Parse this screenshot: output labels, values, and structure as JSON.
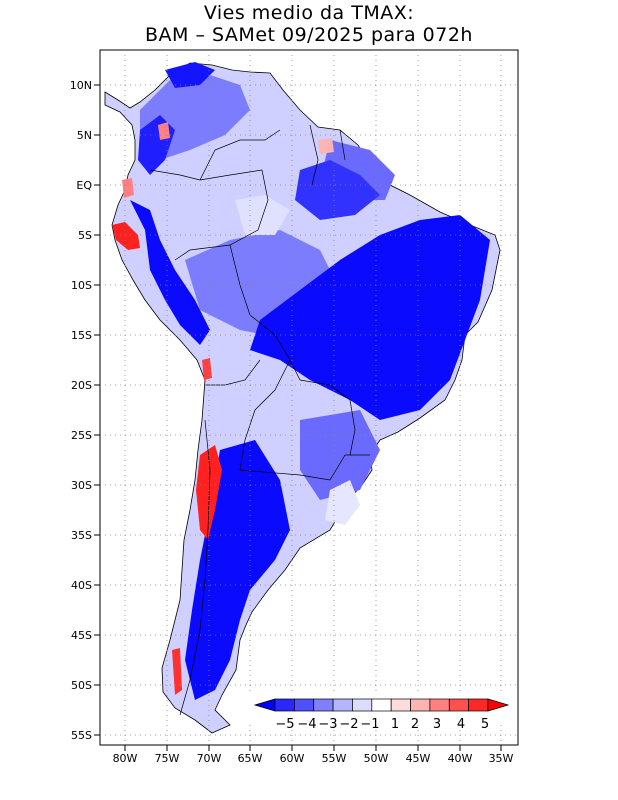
{
  "title": {
    "line1": "Vies medio da TMAX:",
    "line2": "BAM – SAMet 09/2025  para 072h"
  },
  "axes": {
    "lon_ticks": [
      "80W",
      "75W",
      "70W",
      "65W",
      "60W",
      "55W",
      "50W",
      "45W",
      "40W",
      "35W"
    ],
    "lat_ticks": [
      "10N",
      "5N",
      "EQ",
      "5S",
      "10S",
      "15S",
      "20S",
      "25S",
      "30S",
      "35S",
      "40S",
      "45S",
      "50S",
      "55S"
    ]
  },
  "colorbar": {
    "labels": [
      "−5",
      "−4",
      "−3",
      "−2",
      "−1",
      "1",
      "2",
      "3",
      "4",
      "5"
    ],
    "colors": [
      "#0000ff",
      "#2828ff",
      "#5050ff",
      "#8080ff",
      "#b4b4ff",
      "#dcdcff",
      "#ffffff",
      "#ffdcdc",
      "#ffb4b4",
      "#ff8080",
      "#ff5050",
      "#ff2828",
      "#ff0000"
    ]
  },
  "legend_colors": {
    "strong_cold": "#0a0aff",
    "cold": "#4646ff",
    "mild_cold": "#9a9aff",
    "weak_cold": "#d0d0ff",
    "warm": "#ff3030",
    "light_warm": "#ffb4b4"
  }
}
